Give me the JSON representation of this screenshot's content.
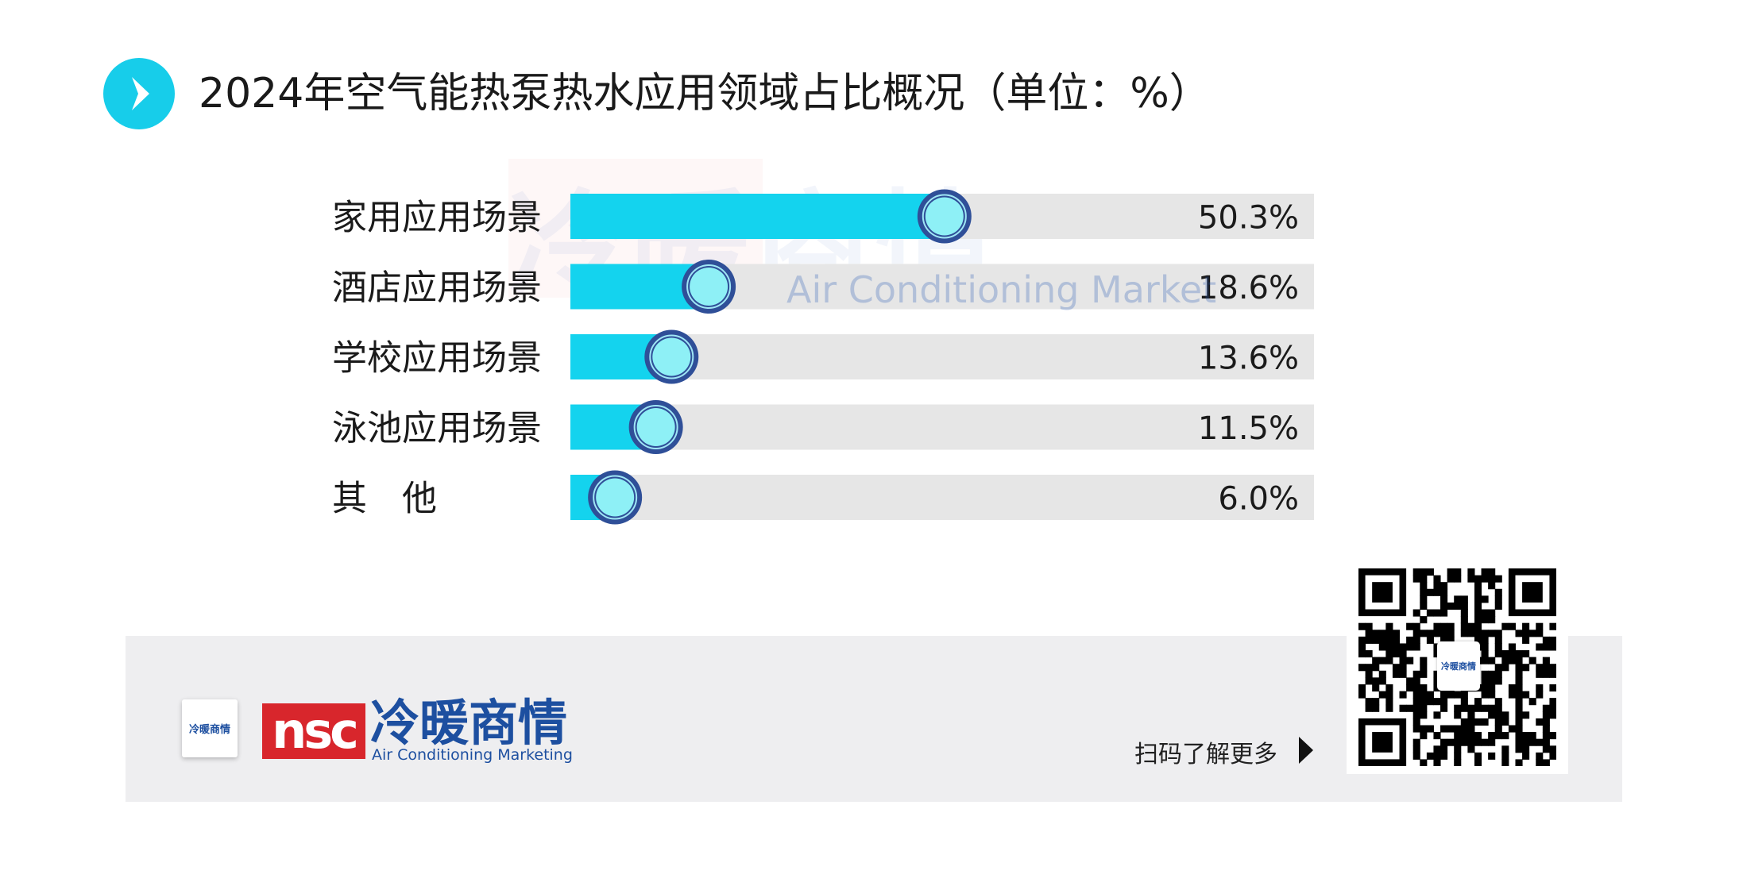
{
  "header": {
    "title": "2024年空气能热泵热水应用领域占比概况（单位：%）",
    "icon": "chevron-right-icon"
  },
  "watermark": {
    "cn": "冷暖商情",
    "en": "Air Conditioning Market"
  },
  "chart_data": {
    "type": "bar",
    "orientation": "horizontal",
    "title": "2024年空气能热泵热水应用领域占比概况（单位：%）",
    "categories": [
      "家用应用场景",
      "酒店应用场景",
      "学校应用场景",
      "泳池应用场景",
      "其　他"
    ],
    "values": [
      50.3,
      18.6,
      13.6,
      11.5,
      6.0
    ],
    "value_labels": [
      "50.3%",
      "18.6%",
      "13.6%",
      "11.5%",
      "6.0%"
    ],
    "xlim": [
      0,
      100
    ],
    "unit": "%",
    "grid": false,
    "colors": {
      "fill": "#14d3ee",
      "track": "#e6e6e6",
      "marker_ring": "#2f4f98",
      "marker_fill": "#8ef0f6"
    }
  },
  "footer": {
    "small_logo_text": "冷暖商情",
    "logo_abbr": "nsc",
    "brand_cn": "冷暖商情",
    "brand_en": "Air Conditioning Marketing",
    "scan_text": "扫码了解更多",
    "qr_logo_text": "冷暖商情"
  }
}
